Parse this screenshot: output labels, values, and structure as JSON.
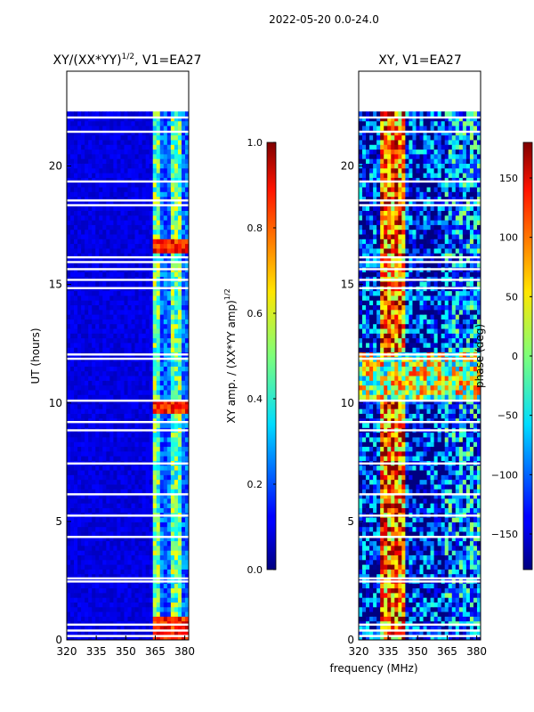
{
  "figure_title": "2022-05-20 0.0-24.0",
  "xlabel_shared": "frequency (MHz)",
  "chart_data": [
    {
      "type": "heatmap",
      "title_main": "XY/(XX*YY)",
      "title_sup": "1/2",
      "title_tail": ", V1=EA27",
      "xlabel": "frequency (MHz)",
      "ylabel": "UT (hours)",
      "xlim": [
        320,
        382
      ],
      "ylim": [
        0,
        24
      ],
      "xticks": [
        "320",
        "335",
        "350",
        "365",
        "380"
      ],
      "xtick_values": [
        320,
        335,
        350,
        365,
        380
      ],
      "yticks": [
        "0",
        "5",
        "10",
        "15",
        "20"
      ],
      "ytick_values": [
        0,
        5,
        10,
        15,
        20
      ],
      "data_extent_hours": [
        0,
        22.3
      ],
      "colormap": "jet",
      "colorbar": {
        "label_main": "XY amp. / (XX*YY amp)",
        "label_sup": "1/2",
        "range": [
          0.0,
          1.0
        ],
        "ticks": [
          "0.0",
          "0.2",
          "0.4",
          "0.6",
          "0.8",
          "1.0"
        ],
        "tick_values": [
          0.0,
          0.2,
          0.4,
          0.6,
          0.8,
          1.0
        ]
      }
    },
    {
      "type": "heatmap",
      "title_main": "XY, V1=EA27",
      "xlabel": "frequency (MHz)",
      "ylabel": "",
      "xlim": [
        320,
        382
      ],
      "ylim": [
        0,
        24
      ],
      "xticks": [
        "320",
        "335",
        "350",
        "365",
        "380"
      ],
      "xtick_values": [
        320,
        335,
        350,
        365,
        380
      ],
      "yticks": [
        "0",
        "5",
        "10",
        "15",
        "20"
      ],
      "ytick_values": [
        0,
        5,
        10,
        15,
        20
      ],
      "data_extent_hours": [
        0,
        22.3
      ],
      "colormap": "jet",
      "colorbar": {
        "label": "phase (deg)",
        "range": [
          -180,
          180
        ],
        "ticks": [
          "−150",
          "−100",
          "−50",
          "0",
          "50",
          "100",
          "150"
        ],
        "tick_values": [
          -150,
          -100,
          -50,
          0,
          50,
          100,
          150
        ]
      }
    }
  ]
}
